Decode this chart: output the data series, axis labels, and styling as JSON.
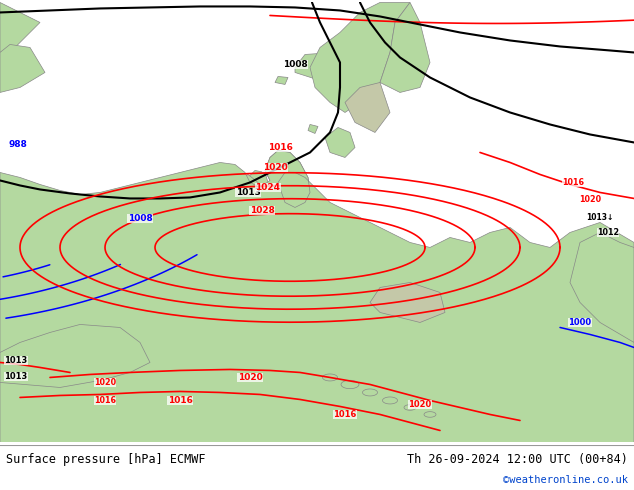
{
  "title_left": "Surface pressure [hPa] ECMWF",
  "title_right": "Th 26-09-2024 12:00 UTC (00+84)",
  "credit": "©weatheronline.co.uk",
  "ocean_color": "#c8c8d4",
  "land_color": "#b4d9a0",
  "mountain_color": "#c0b090",
  "fig_width": 6.34,
  "fig_height": 4.9,
  "dpi": 100,
  "bottom_bar_color": "#d8d8d8",
  "bottom_text_color": "#000000",
  "credit_color": "#0044cc",
  "blue": "#0000ff",
  "black": "#000000",
  "red": "#ff0000",
  "gray_border": "#888888",
  "font_size_title": 8.5
}
